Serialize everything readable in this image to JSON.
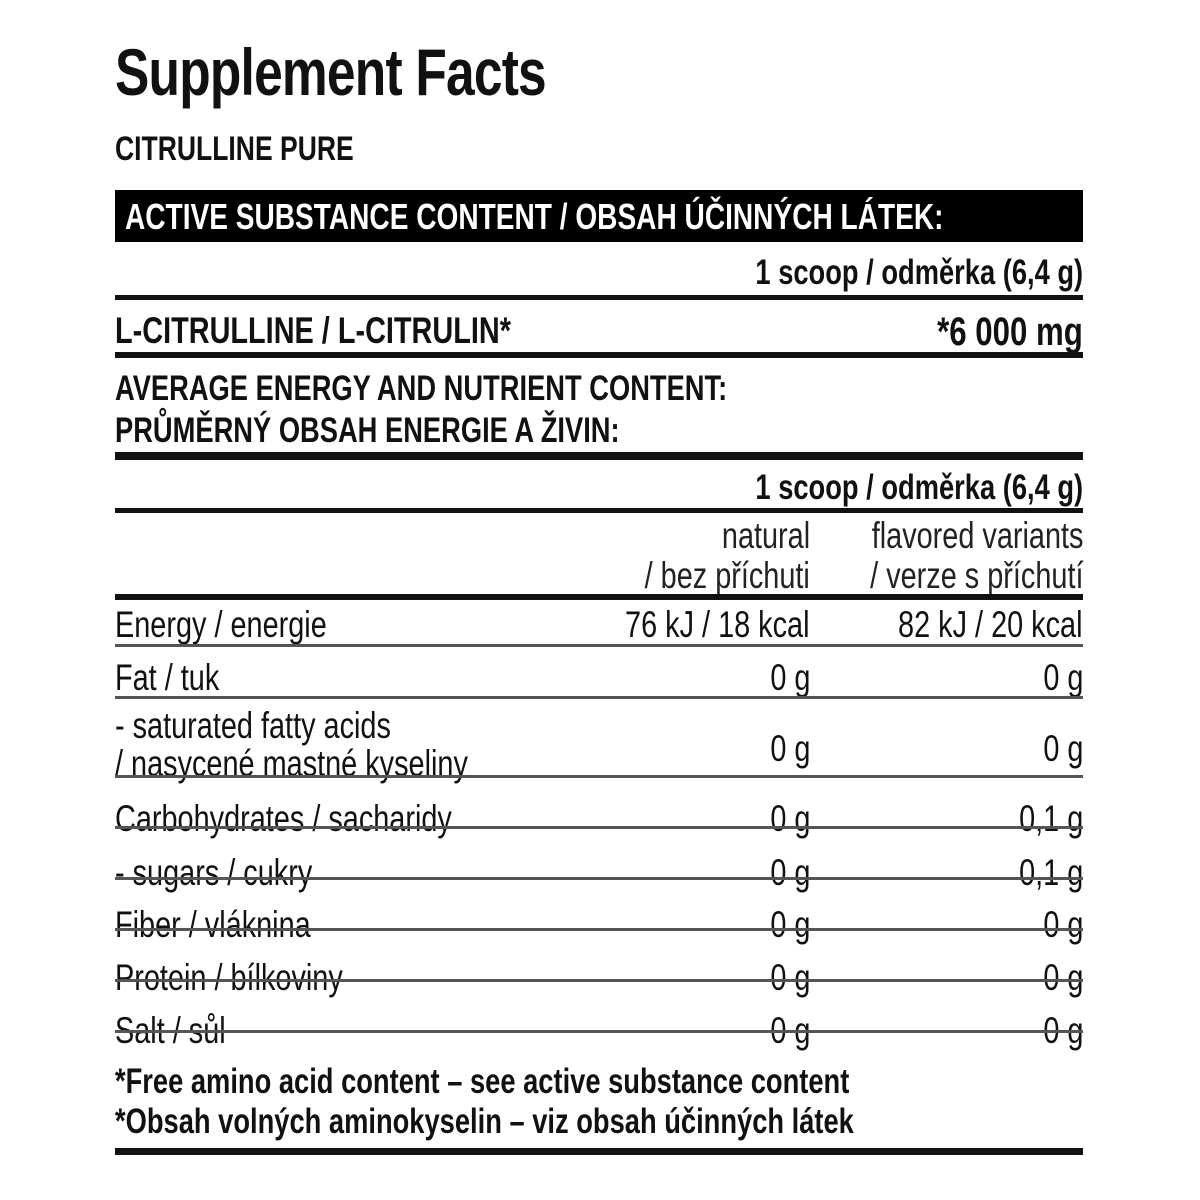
{
  "title": "Supplement Facts",
  "product": "CITRULLINE PURE",
  "active_section": {
    "header": "ACTIVE SUBSTANCE CONTENT / OBSAH ÚČINNÝCH LÁTEK:",
    "serving": "1 scoop / odměrka (6,4 g)",
    "ingredient": "L-CITRULLINE / L-CITRULIN*",
    "amount": "*6 000 mg"
  },
  "nutrient_section": {
    "header_line1": "AVERAGE ENERGY AND NUTRIENT CONTENT:",
    "header_line2": "PRŮMĚRNÝ OBSAH ENERGIE A ŽIVIN:",
    "serving": "1 scoop / odměrka (6,4 g)",
    "columns": [
      {
        "line1": "natural",
        "line2": "/ bez příchuti"
      },
      {
        "line1": "flavored variants",
        "line2": "/ verze s příchutí"
      }
    ],
    "rows": [
      {
        "label": "Energy / energie",
        "natural": "76 kJ / 18 kcal",
        "flavored": "82 kJ / 20 kcal"
      },
      {
        "label": "Fat / tuk",
        "natural": "0 g",
        "flavored": "0 g"
      },
      {
        "label": "- saturated fatty acids",
        "label2": "/ nasycené mastné kyseliny",
        "natural": "0 g",
        "flavored": "0 g"
      },
      {
        "label": "Carbohydrates / sacharidy",
        "natural": "0 g",
        "flavored": "0,1 g"
      },
      {
        "label": "- sugars / cukry",
        "natural": "0 g",
        "flavored": "0,1 g"
      },
      {
        "label": "Fiber / vláknina",
        "natural": "0 g",
        "flavored": "0 g"
      },
      {
        "label": "Protein / bílkoviny",
        "natural": "0 g",
        "flavored": "0 g"
      },
      {
        "label": "Salt / sůl",
        "natural": "0 g",
        "flavored": "0 g"
      }
    ]
  },
  "footnotes": [
    "*Free amino acid content – see active substance content",
    "*Obsah volných aminokyselin – viz obsah účinných látek"
  ]
}
